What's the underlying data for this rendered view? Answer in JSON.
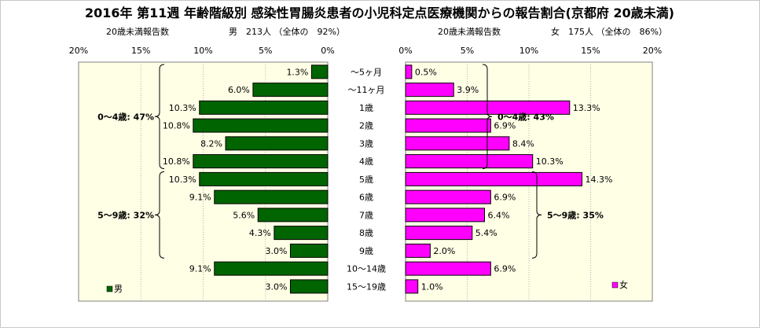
{
  "chart_data": {
    "type": "bar",
    "title": "2016年 第11週 年齢階級別 感染性胃腸炎患者の小児科定点医療機関からの報告割合(京都府 20歳未満)",
    "categories": [
      "～5ヶ月",
      "～11ヶ月",
      "1歳",
      "2歳",
      "3歳",
      "4歳",
      "5歳",
      "6歳",
      "7歳",
      "8歳",
      "9歳",
      "10～14歳",
      "15～19歳"
    ],
    "male": {
      "name": "男",
      "subtitle_left": "20歳未満報告数",
      "subtitle_right": "男　213人 （全体の　92%）",
      "values": [
        1.3,
        6.0,
        10.3,
        10.8,
        8.2,
        10.8,
        10.3,
        9.1,
        5.6,
        4.3,
        3.0,
        9.1,
        3.0
      ],
      "value_labels": [
        "1.3%",
        "6.0%",
        "10.3%",
        "10.8%",
        "8.2%",
        "10.8%",
        "10.3%",
        "9.1%",
        "5.6%",
        "4.3%",
        "3.0%",
        "9.1%",
        "3.0%"
      ],
      "color": "#006400",
      "axis_ticks": [
        "20%",
        "15%",
        "10%",
        "5%",
        "0%"
      ],
      "xlim": [
        0,
        20
      ],
      "group_labels": [
        {
          "text": "0～4歳: 47%",
          "from": 0,
          "to": 5
        },
        {
          "text": "5～9歳: 32%",
          "from": 6,
          "to": 10
        }
      ]
    },
    "female": {
      "name": "女",
      "subtitle_left": "20歳未満報告数",
      "subtitle_right": "女　175人 （全体の　86%）",
      "values": [
        0.5,
        3.9,
        13.3,
        6.9,
        8.4,
        10.3,
        14.3,
        6.9,
        6.4,
        5.4,
        2.0,
        6.9,
        1.0
      ],
      "value_labels": [
        "0.5%",
        "3.9%",
        "13.3%",
        "6.9%",
        "8.4%",
        "10.3%",
        "14.3%",
        "6.9%",
        "6.4%",
        "5.4%",
        "2.0%",
        "6.9%",
        "1.0%"
      ],
      "color": "#ff00ff",
      "axis_ticks": [
        "0%",
        "5%",
        "10%",
        "15%",
        "20%"
      ],
      "xlim": [
        0,
        20
      ],
      "group_labels": [
        {
          "text": "0～4歳: 43%",
          "from": 0,
          "to": 5
        },
        {
          "text": "5～9歳: 35%",
          "from": 6,
          "to": 10
        }
      ]
    },
    "legend": {
      "male": "男",
      "female": "女"
    },
    "plot_background": "#ffffe6",
    "grid": true
  }
}
